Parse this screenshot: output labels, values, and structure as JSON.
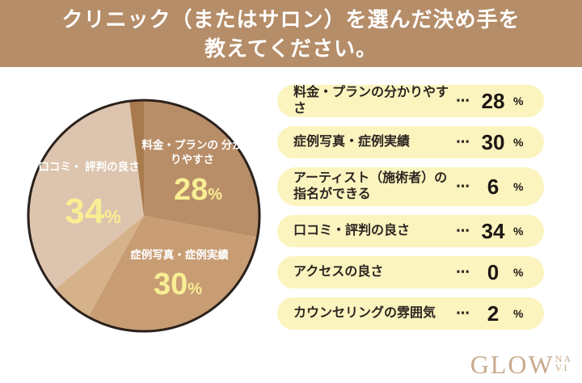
{
  "header": {
    "title_line1": "クリニック（またはサロン）を選んだ決め手を",
    "title_line2": "教えてください。"
  },
  "chart_data": {
    "type": "pie",
    "title": "クリニック（またはサロン）を選んだ決め手を教えてください。",
    "unit": "%",
    "start_angle_deg": -90,
    "direction": "clockwise",
    "outline_color": "#2a211b",
    "segments": [
      {
        "label": "料金・プランの分かりやすさ",
        "value": 28,
        "color": "#b88e68"
      },
      {
        "label": "症例写真・症例実績",
        "value": 30,
        "color": "#c89d74"
      },
      {
        "label": "アーティスト（施術者）の指名ができる",
        "value": 6,
        "color": "#d6b28a"
      },
      {
        "label": "口コミ・評判の良さ",
        "value": 34,
        "color": "#ddc4ae"
      },
      {
        "label": "アクセスの良さ",
        "value": 0
      },
      {
        "label": "カウンセリングの雰囲気",
        "value": 2,
        "color": "#a87a4e"
      }
    ]
  },
  "pie": {
    "fee": {
      "line1": "料金・プランの",
      "line2": "分かりやすさ",
      "value": "28",
      "unit": "%"
    },
    "review": {
      "line1": "口コミ・",
      "line2": "評判の良さ",
      "value": "34",
      "unit": "%"
    },
    "case": {
      "line1": "症例写真・症例実績",
      "value": "30",
      "unit": "%"
    }
  },
  "legend": {
    "dots": "⋯",
    "rows": [
      {
        "label": "料金・プランの分かりやすさ",
        "label2": "",
        "value": "28",
        "unit": "%"
      },
      {
        "label": "症例写真・症例実績",
        "label2": "",
        "value": "30",
        "unit": "%"
      },
      {
        "label": "アーティスト（施術者）の",
        "label2": "指名ができる",
        "value": "6",
        "unit": "%"
      },
      {
        "label": "口コミ・評判の良さ",
        "label2": "",
        "value": "34",
        "unit": "%"
      },
      {
        "label": "アクセスの良さ",
        "label2": "",
        "value": "0",
        "unit": "%"
      },
      {
        "label": "カウンセリングの雰囲気",
        "label2": "",
        "value": "2",
        "unit": "%"
      }
    ]
  },
  "logo": {
    "word": "GLOW",
    "suffix_top": "NA",
    "suffix_bottom": "VI"
  },
  "colors": {
    "header_bg": "#b58d68",
    "page_bg": "#ffffff",
    "pill_bg": "#fbf4bf",
    "pie_percent_text": "#f8ee93",
    "pie_label_text": "#ffffff",
    "legend_text": "#2d2520",
    "logo": "#c9aa8d"
  }
}
